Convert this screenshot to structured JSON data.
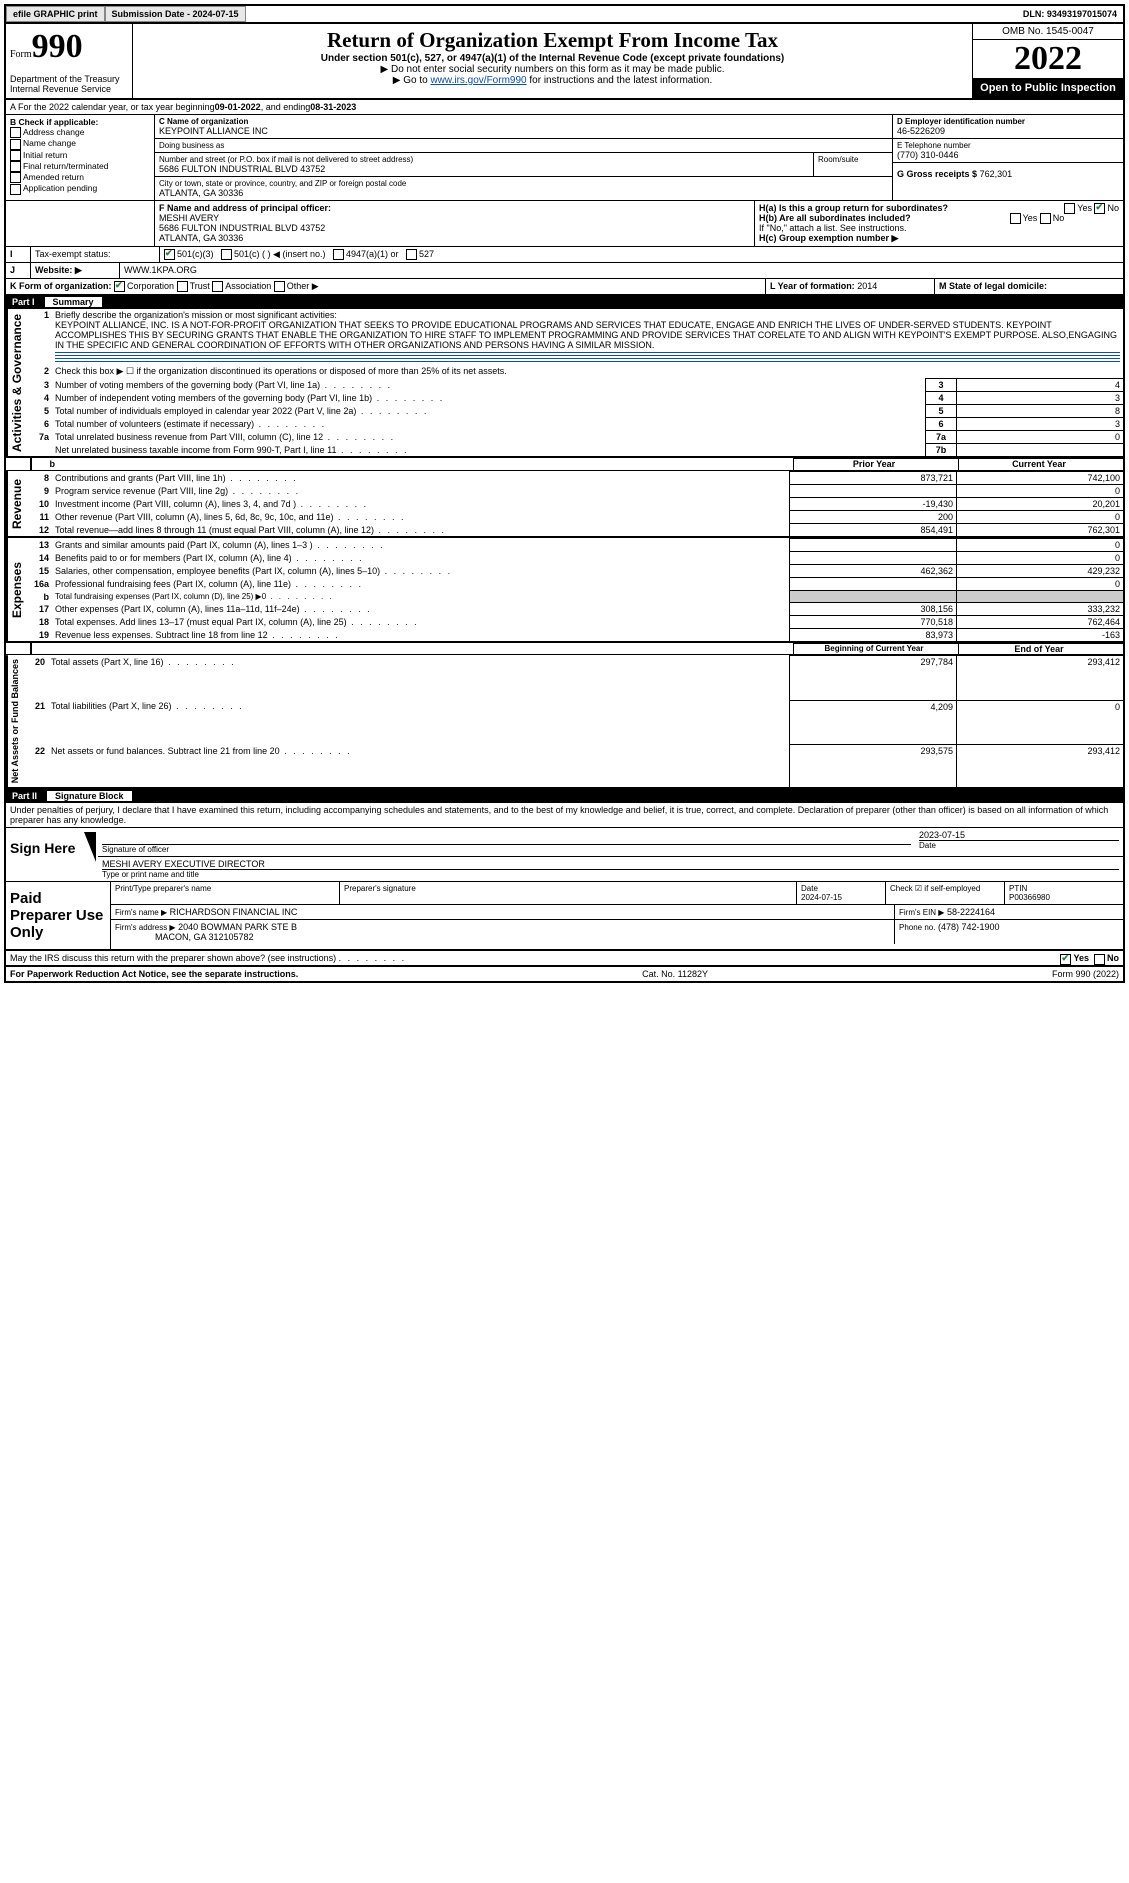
{
  "topbar": {
    "efile": "efile GRAPHIC print",
    "subdate_label": "Submission Date - 2024-07-15",
    "dln": "DLN: 93493197015074"
  },
  "header": {
    "form_label": "Form",
    "form_num": "990",
    "title": "Return of Organization Exempt From Income Tax",
    "subtitle": "Under section 501(c), 527, or 4947(a)(1) of the Internal Revenue Code (except private foundations)",
    "note1": "▶ Do not enter social security numbers on this form as it may be made public.",
    "note2_pre": "▶ Go to ",
    "note2_link": "www.irs.gov/Form990",
    "note2_post": " for instructions and the latest information.",
    "dept": "Department of the Treasury",
    "irs": "Internal Revenue Service",
    "omb": "OMB No. 1545-0047",
    "year": "2022",
    "open": "Open to Public Inspection"
  },
  "lineA": {
    "text_pre": "A For the 2022 calendar year, or tax year beginning ",
    "begin": "09-01-2022",
    "mid": " , and ending ",
    "end": "08-31-2023"
  },
  "colB": {
    "header": "B Check if applicable:",
    "items": [
      "Address change",
      "Name change",
      "Initial return",
      "Final return/terminated",
      "Amended return",
      "Application pending"
    ]
  },
  "colC": {
    "name_label": "C Name of organization",
    "name": "KEYPOINT ALLIANCE INC",
    "dba_label": "Doing business as",
    "dba": "",
    "addr_label": "Number and street (or P.O. box if mail is not delivered to street address)",
    "room_label": "Room/suite",
    "addr": "5686 FULTON INDUSTRIAL BLVD 43752",
    "city_label": "City or town, state or province, country, and ZIP or foreign postal code",
    "city": "ATLANTA, GA  30336"
  },
  "colD": {
    "ein_label": "D Employer identification number",
    "ein": "46-5226209",
    "tel_label": "E Telephone number",
    "tel": "(770) 310-0446",
    "gross_label": "G Gross receipts $",
    "gross": "762,301"
  },
  "F": {
    "label": "F  Name and address of principal officer:",
    "name": "MESHI AVERY",
    "l1": "5686 FULTON INDUSTRIAL BLVD 43752",
    "l2": "ATLANTA, GA  30336"
  },
  "H": {
    "a_label": "H(a)  Is this a group return for subordinates?",
    "b_label": "H(b)  Are all subordinates included?",
    "b_note": "If \"No,\" attach a list. See instructions.",
    "c_label": "H(c)  Group exemption number ▶"
  },
  "I": {
    "label": "Tax-exempt status:",
    "opts": [
      "501(c)(3)",
      "501(c) (  ) ◀ (insert no.)",
      "4947(a)(1) or",
      "527"
    ]
  },
  "J": {
    "label": "Website: ▶",
    "val": "WWW.1KPA.ORG"
  },
  "K": {
    "label": "K Form of organization:",
    "opts": [
      "Corporation",
      "Trust",
      "Association",
      "Other ▶"
    ]
  },
  "L": {
    "label": "L Year of formation:",
    "val": "2014"
  },
  "M": {
    "label": "M State of legal domicile:",
    "val": ""
  },
  "parts": {
    "p1": "Part I",
    "p1t": "Summary",
    "p2": "Part II",
    "p2t": "Signature Block"
  },
  "summary": {
    "l1_label": "Briefly describe the organization's mission or most significant activities:",
    "l1_text": "KEYPOINT ALLIANCE, INC. IS A NOT-FOR-PROFIT ORGANIZATION THAT SEEKS TO PROVIDE EDUCATIONAL PROGRAMS AND SERVICES THAT EDUCATE, ENGAGE AND ENRICH THE LIVES OF UNDER-SERVED STUDENTS. KEYPOINT ACCOMPLISHES THIS BY SECURING GRANTS THAT ENABLE THE ORGANIZATION TO HIRE STAFF TO IMPLEMENT PROGRAMMING AND PROVIDE SERVICES THAT CORELATE TO AND ALIGN WITH KEYPOINT'S EXEMPT PURPOSE. ALSO,ENGAGING IN THE SPECIFIC AND GENERAL COORDINATION OF EFFORTS WITH OTHER ORGANIZATIONS AND PERSONS HAVING A SIMILAR MISSION.",
    "l2": "Check this box ▶ ☐ if the organization discontinued its operations or disposed of more than 25% of its net assets.",
    "rows_single": [
      {
        "n": "3",
        "t": "Number of voting members of the governing body (Part VI, line 1a)",
        "box": "3",
        "v": "4"
      },
      {
        "n": "4",
        "t": "Number of independent voting members of the governing body (Part VI, line 1b)",
        "box": "4",
        "v": "3"
      },
      {
        "n": "5",
        "t": "Total number of individuals employed in calendar year 2022 (Part V, line 2a)",
        "box": "5",
        "v": "8"
      },
      {
        "n": "6",
        "t": "Total number of volunteers (estimate if necessary)",
        "box": "6",
        "v": "3"
      },
      {
        "n": "7a",
        "t": "Total unrelated business revenue from Part VIII, column (C), line 12",
        "box": "7a",
        "v": "0"
      },
      {
        "n": "",
        "t": "Net unrelated business taxable income from Form 990-T, Part I, line 11",
        "box": "7b",
        "v": ""
      }
    ],
    "col_headers": {
      "b": "b",
      "prior": "Prior Year",
      "current": "Current Year"
    },
    "revenue": [
      {
        "n": "8",
        "t": "Contributions and grants (Part VIII, line 1h)",
        "p": "873,721",
        "c": "742,100"
      },
      {
        "n": "9",
        "t": "Program service revenue (Part VIII, line 2g)",
        "p": "",
        "c": "0"
      },
      {
        "n": "10",
        "t": "Investment income (Part VIII, column (A), lines 3, 4, and 7d )",
        "p": "-19,430",
        "c": "20,201"
      },
      {
        "n": "11",
        "t": "Other revenue (Part VIII, column (A), lines 5, 6d, 8c, 9c, 10c, and 11e)",
        "p": "200",
        "c": "0"
      },
      {
        "n": "12",
        "t": "Total revenue—add lines 8 through 11 (must equal Part VIII, column (A), line 12)",
        "p": "854,491",
        "c": "762,301"
      }
    ],
    "expenses": [
      {
        "n": "13",
        "t": "Grants and similar amounts paid (Part IX, column (A), lines 1–3 )",
        "p": "",
        "c": "0"
      },
      {
        "n": "14",
        "t": "Benefits paid to or for members (Part IX, column (A), line 4)",
        "p": "",
        "c": "0"
      },
      {
        "n": "15",
        "t": "Salaries, other compensation, employee benefits (Part IX, column (A), lines 5–10)",
        "p": "462,362",
        "c": "429,232"
      },
      {
        "n": "16a",
        "t": "Professional fundraising fees (Part IX, column (A), line 11e)",
        "p": "",
        "c": "0"
      },
      {
        "n": "b",
        "t": "Total fundraising expenses (Part IX, column (D), line 25) ▶0",
        "p": "GRAY",
        "c": "GRAY"
      },
      {
        "n": "17",
        "t": "Other expenses (Part IX, column (A), lines 11a–11d, 11f–24e)",
        "p": "308,156",
        "c": "333,232"
      },
      {
        "n": "18",
        "t": "Total expenses. Add lines 13–17 (must equal Part IX, column (A), line 25)",
        "p": "770,518",
        "c": "762,464"
      },
      {
        "n": "19",
        "t": "Revenue less expenses. Subtract line 18 from line 12",
        "p": "83,973",
        "c": "-163"
      }
    ],
    "na_headers": {
      "prior": "Beginning of Current Year",
      "current": "End of Year"
    },
    "netassets": [
      {
        "n": "20",
        "t": "Total assets (Part X, line 16)",
        "p": "297,784",
        "c": "293,412"
      },
      {
        "n": "21",
        "t": "Total liabilities (Part X, line 26)",
        "p": "4,209",
        "c": "0"
      },
      {
        "n": "22",
        "t": "Net assets or fund balances. Subtract line 21 from line 20",
        "p": "293,575",
        "c": "293,412"
      }
    ],
    "side_labels": {
      "ag": "Activities & Governance",
      "rev": "Revenue",
      "exp": "Expenses",
      "na": "Net Assets or Fund Balances"
    }
  },
  "sig": {
    "perjury": "Under penalties of perjury, I declare that I have examined this return, including accompanying schedules and statements, and to the best of my knowledge and belief, it is true, correct, and complete. Declaration of preparer (other than officer) is based on all information of which preparer has any knowledge.",
    "sign_here": "Sign Here",
    "sig_officer": "Signature of officer",
    "date_label": "Date",
    "date": "2023-07-15",
    "officer_name": "MESHI AVERY  EXECUTIVE DIRECTOR",
    "type_name": "Type or print name and title",
    "paid": "Paid Preparer Use Only",
    "prep_name_label": "Print/Type preparer's name",
    "prep_sig_label": "Preparer's signature",
    "prep_date_label": "Date",
    "prep_date": "2024-07-15",
    "self_emp": "Check ☑ if self-employed",
    "ptin_label": "PTIN",
    "ptin": "P00366980",
    "firm_name_label": "Firm's name   ▶",
    "firm_name": "RICHARDSON FINANCIAL INC",
    "firm_ein_label": "Firm's EIN ▶",
    "firm_ein": "58-2224164",
    "firm_addr_label": "Firm's address ▶",
    "firm_addr1": "2040 BOWMAN PARK STE B",
    "firm_addr2": "MACON, GA  312105782",
    "firm_phone_label": "Phone no.",
    "firm_phone": "(478) 742-1900",
    "discuss": "May the IRS discuss this return with the preparer shown above? (see instructions)"
  },
  "footer": {
    "pra": "For Paperwork Reduction Act Notice, see the separate instructions.",
    "cat": "Cat. No. 11282Y",
    "form": "Form 990 (2022)"
  }
}
